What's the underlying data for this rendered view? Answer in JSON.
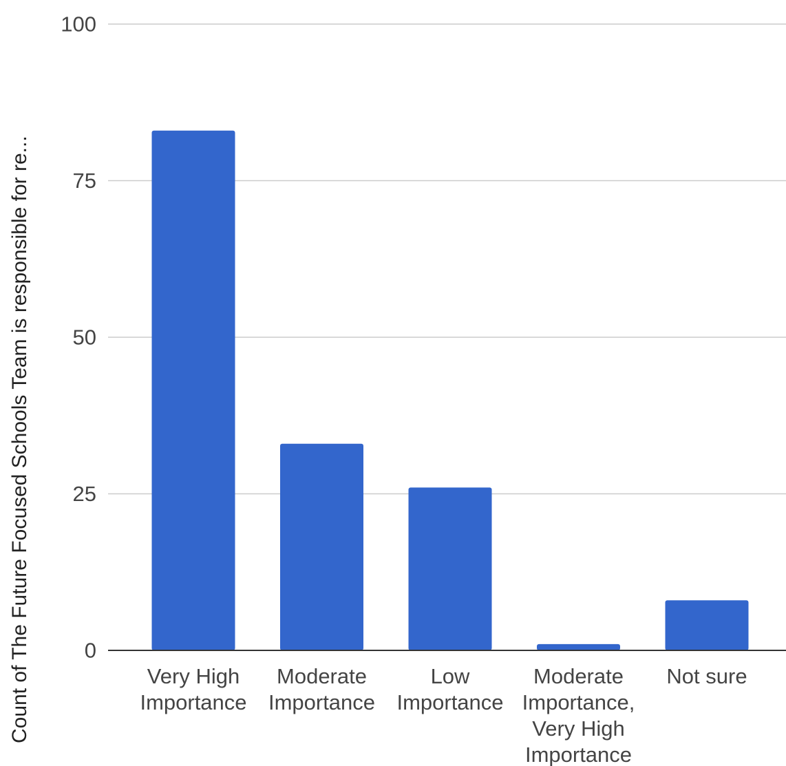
{
  "chart_data": {
    "type": "bar",
    "title": "",
    "xlabel": "",
    "ylabel": "Count of The Future Focused Schools Team is responsible for re...",
    "categories": [
      [
        "Very High",
        "Importance"
      ],
      [
        "Moderate",
        "Importance"
      ],
      [
        "Low",
        "Importance"
      ],
      [
        "Moderate",
        "Importance,",
        "Very High",
        "Importance"
      ],
      [
        "Not sure"
      ]
    ],
    "values": [
      83,
      33,
      26,
      1,
      8
    ],
    "ylim": [
      0,
      100
    ],
    "yticks": [
      0,
      25,
      50,
      75,
      100
    ],
    "grid": true,
    "legend": "none",
    "bar_color": "#3366cc",
    "grid_color": "#cccccc",
    "baseline_color": "#333333"
  }
}
